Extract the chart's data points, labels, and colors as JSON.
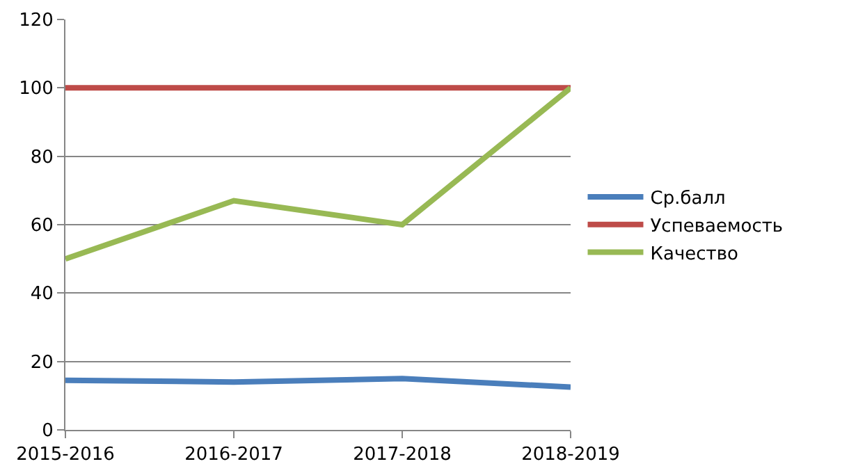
{
  "chart_data": {
    "type": "line",
    "categories": [
      "2015-2016",
      "2016-2017",
      "2017-2018",
      "2018-2019"
    ],
    "series": [
      {
        "name": "Ср.балл",
        "color": "#4a7ebb",
        "values": [
          14.5,
          14,
          15,
          12.5
        ]
      },
      {
        "name": "Успеваемость",
        "color": "#be4b48",
        "values": [
          100,
          100,
          100,
          100
        ]
      },
      {
        "name": "Качество",
        "color": "#98b954",
        "values": [
          50,
          67,
          60,
          100
        ]
      }
    ],
    "ylim": [
      0,
      120
    ],
    "yticks": [
      0,
      20,
      40,
      60,
      80,
      100,
      120
    ],
    "grid": "y",
    "legend": "right",
    "marker": "none",
    "line_style": "solid"
  }
}
